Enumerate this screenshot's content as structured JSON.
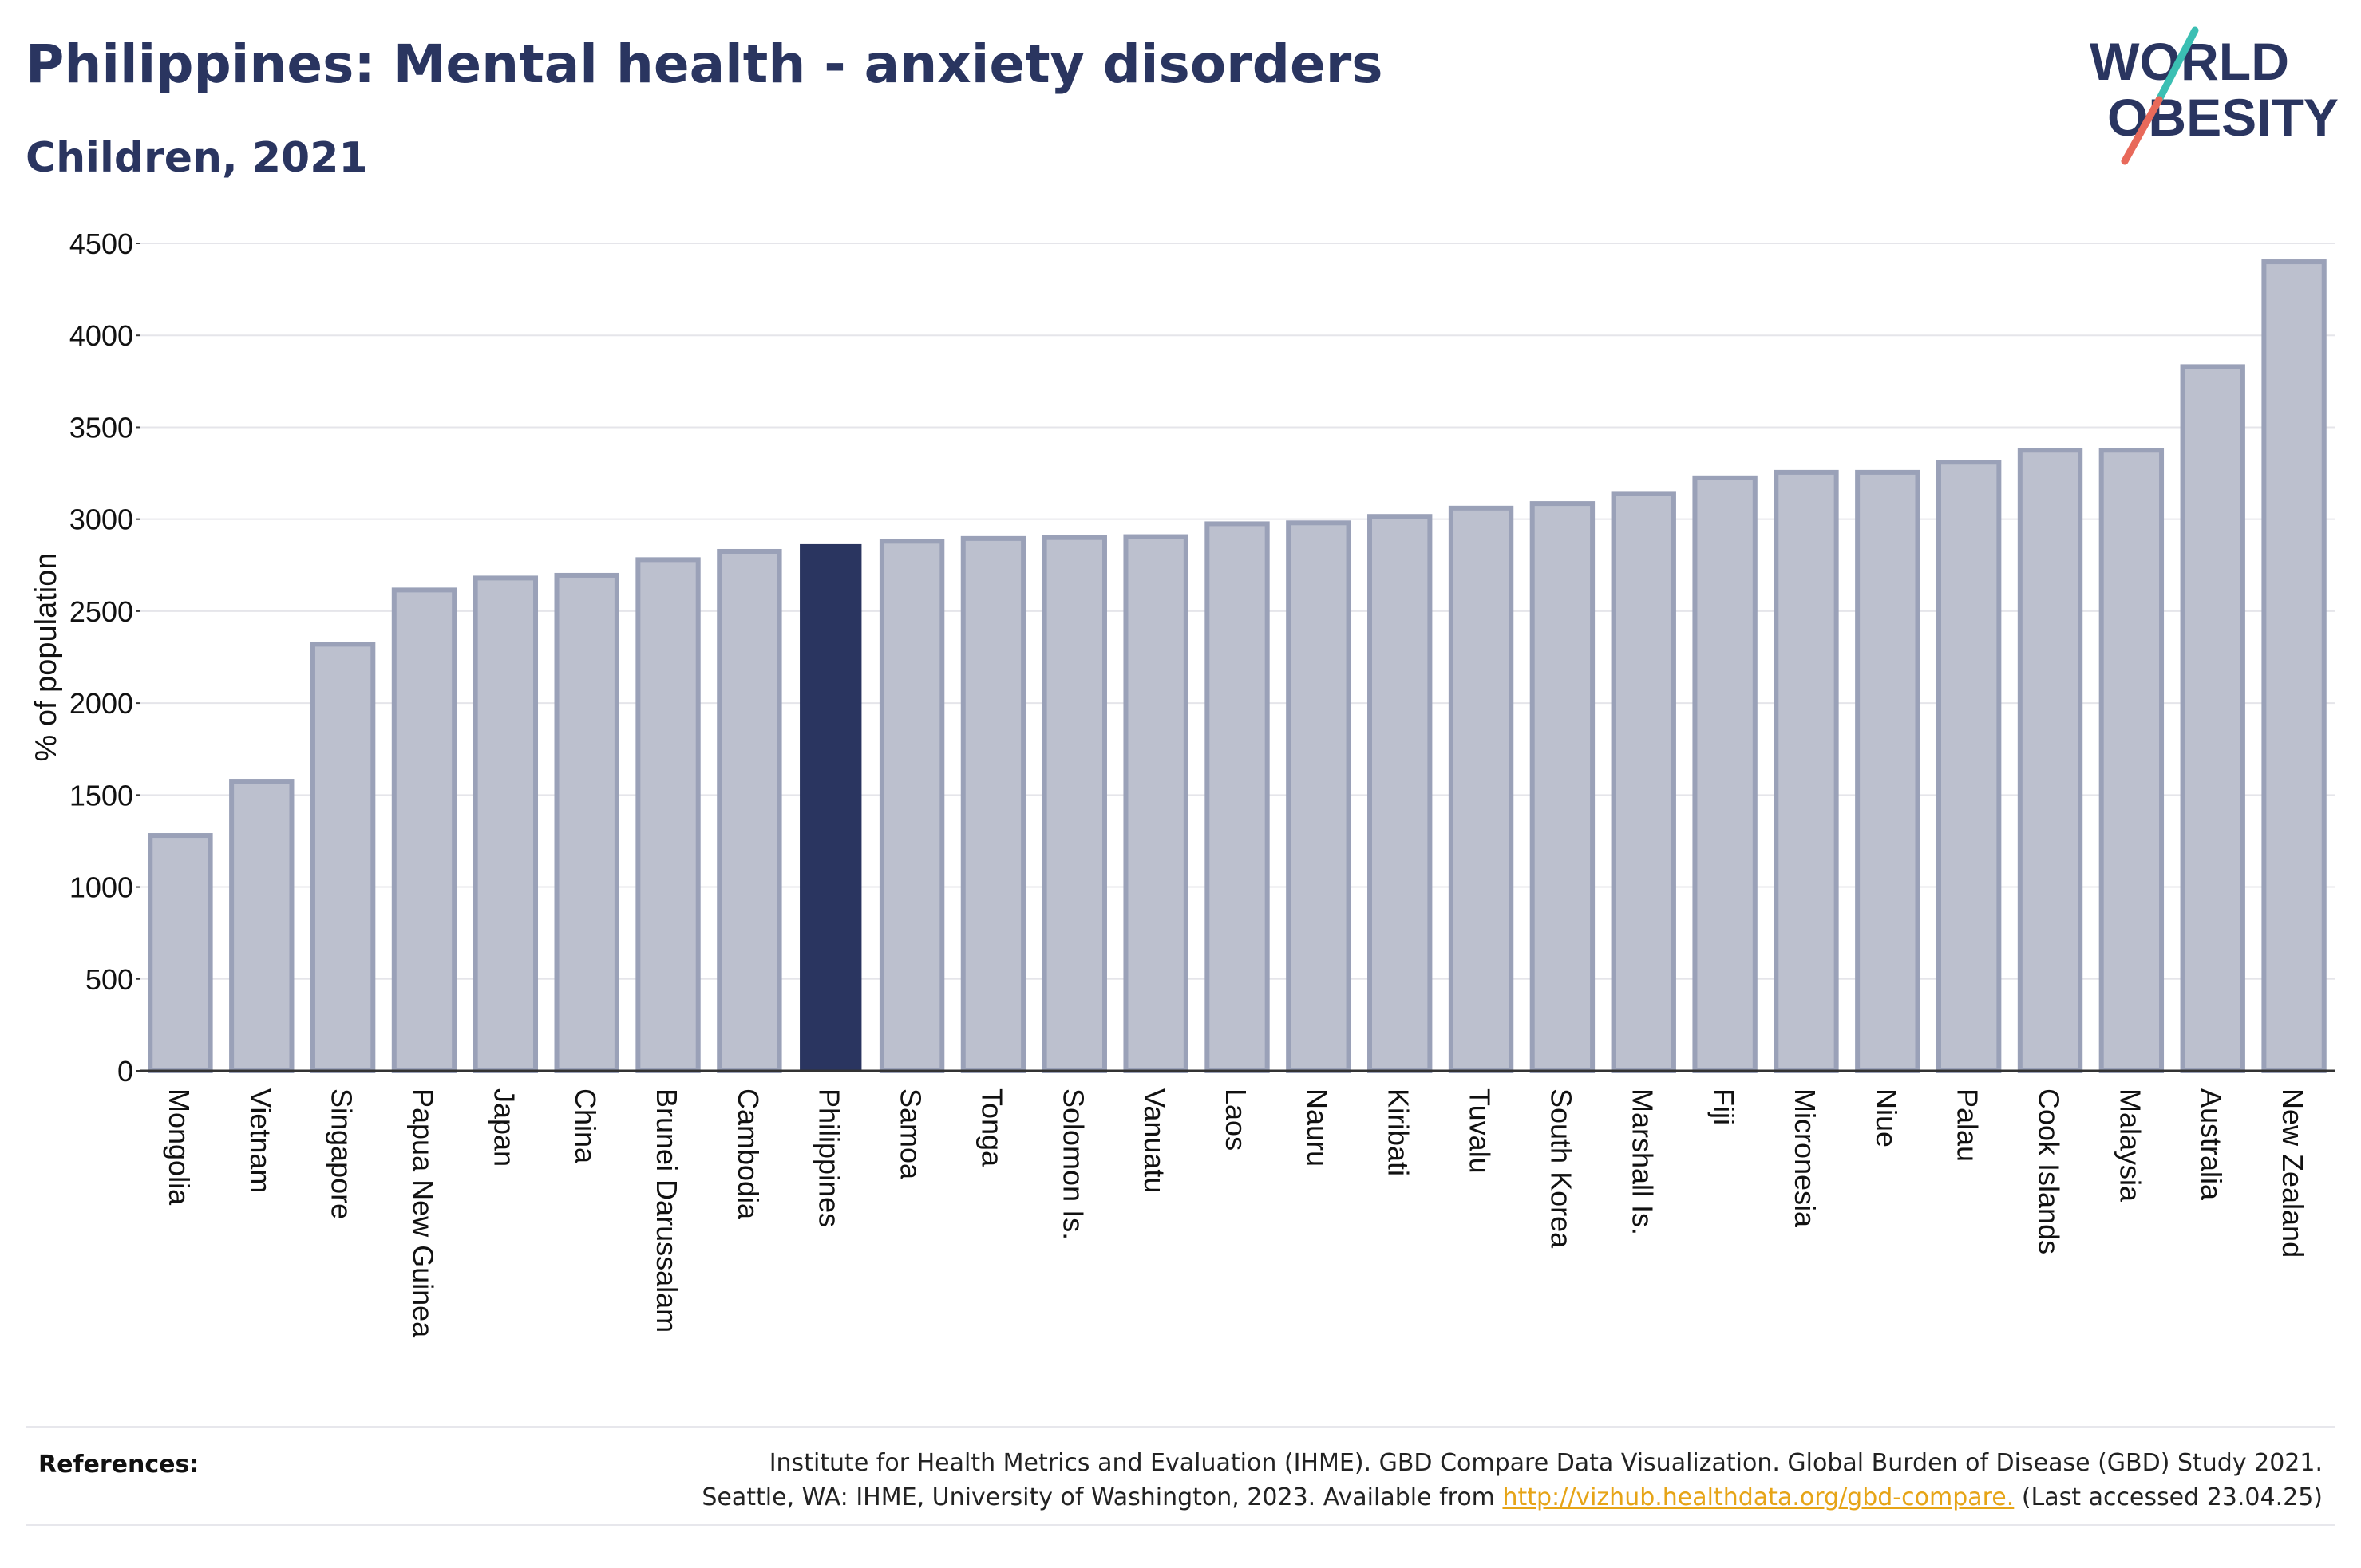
{
  "title": "Philippines: Mental health - anxiety disorders",
  "subtitle": "Children, 2021",
  "logo": {
    "line1": "WORLD",
    "line2": "OBESITY",
    "accent_teal": "#3bbfb3",
    "accent_coral": "#e8695a"
  },
  "colors": {
    "bar": "#bcc0ce",
    "bar_edge": "#9aa1b8",
    "highlight": "#2a3560",
    "grid": "#e5e5ea",
    "axis": "#333333"
  },
  "references": {
    "label": "References:",
    "line1": "Institute for Health Metrics and Evaluation (IHME). GBD Compare Data Visualization. Global Burden of Disease (GBD) Study 2021.",
    "line2_prefix": "Seattle, WA: IHME, University of Washington, 2023. Available from ",
    "link": "http://vizhub.healthdata.org/gbd-compare.",
    "line2_suffix": " (Last accessed 23.04.25)"
  },
  "chart_data": {
    "type": "bar",
    "ylabel": "% of population",
    "xlabel": "",
    "ylim": [
      0,
      4500
    ],
    "yticks": [
      0,
      500,
      1000,
      1500,
      2000,
      2500,
      3000,
      3500,
      4000,
      4500
    ],
    "grid": true,
    "highlight": "Philippines",
    "categories": [
      "Mongolia",
      "Vietnam",
      "Singapore",
      "Papua New Guinea",
      "Japan",
      "China",
      "Brunei Darussalam",
      "Cambodia",
      "Philippines",
      "Samoa",
      "Tonga",
      "Solomon Is.",
      "Vanuatu",
      "Laos",
      "Nauru",
      "Kiribati",
      "Tuvalu",
      "South Korea",
      "Marshall Is.",
      "Fiji",
      "Micronesia",
      "Niue",
      "Palau",
      "Cook Islands",
      "Malaysia",
      "Australia",
      "New Zealand"
    ],
    "values": [
      1280,
      1575,
      2320,
      2615,
      2680,
      2695,
      2780,
      2825,
      2860,
      2880,
      2895,
      2900,
      2905,
      2975,
      2980,
      3015,
      3060,
      3085,
      3140,
      3225,
      3255,
      3255,
      3310,
      3375,
      3375,
      3830,
      4400
    ]
  }
}
